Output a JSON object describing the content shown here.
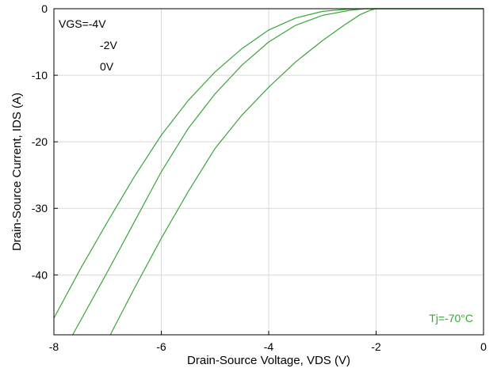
{
  "chart_data": {
    "type": "line",
    "title": "",
    "xlabel": "Drain-Source Voltage, VDS (V)",
    "ylabel": "Drain-Source Current, IDS (A)",
    "xlim": [
      -8,
      0
    ],
    "ylim": [
      -49,
      0
    ],
    "xticks": [
      -8,
      -6,
      -4,
      -2,
      0
    ],
    "yticks": [
      0,
      -10,
      -20,
      -30,
      -40
    ],
    "xtick_labels": [
      "-8",
      "-6",
      "-4",
      "-2",
      "0"
    ],
    "ytick_labels": [
      "0",
      "-10",
      "-20",
      "-30",
      "-40"
    ],
    "grid": true,
    "color": "#3aa53a",
    "legend": {
      "placement": "top-left",
      "entries": [
        "VGS=-4V",
        "-2V",
        "0V"
      ]
    },
    "annotation": "Tj=-70°C",
    "series": [
      {
        "name": "VGS=-4V",
        "x": [
          -8.0,
          -7.5,
          -7.0,
          -6.5,
          -6.0,
          -5.5,
          -5.0,
          -4.5,
          -4.0,
          -3.5,
          -3.0,
          -2.5,
          -2.2,
          -2.0,
          -1.5,
          -1.0,
          -0.5,
          0.0
        ],
        "y": [
          -46.5,
          -39.0,
          -32.0,
          -25.2,
          -19.0,
          -13.8,
          -9.5,
          -6.0,
          -3.2,
          -1.4,
          -0.4,
          -0.05,
          0.0,
          0.0,
          0.0,
          0.0,
          0.0,
          0.0
        ]
      },
      {
        "name": "-2V",
        "x": [
          -7.65,
          -7.0,
          -6.5,
          -6.0,
          -5.5,
          -5.0,
          -4.5,
          -4.0,
          -3.5,
          -3.0,
          -2.5,
          -2.2,
          -2.0,
          -1.5,
          -1.0,
          -0.5,
          0.0
        ],
        "y": [
          -49.0,
          -39.5,
          -32.0,
          -24.5,
          -18.0,
          -12.8,
          -8.5,
          -5.0,
          -2.5,
          -1.0,
          -0.25,
          0.0,
          0.0,
          0.0,
          0.0,
          0.0,
          0.0
        ]
      },
      {
        "name": "0V",
        "x": [
          -6.95,
          -6.5,
          -6.0,
          -5.5,
          -5.0,
          -4.5,
          -4.0,
          -3.5,
          -3.0,
          -2.6,
          -2.3,
          -2.1,
          -2.0,
          -1.5,
          -1.0,
          -0.5,
          0.0
        ],
        "y": [
          -49.0,
          -42.0,
          -34.5,
          -27.5,
          -21.0,
          -16.0,
          -11.8,
          -8.0,
          -4.8,
          -2.5,
          -0.9,
          -0.2,
          0.0,
          0.0,
          0.0,
          0.0,
          0.0
        ]
      }
    ]
  }
}
